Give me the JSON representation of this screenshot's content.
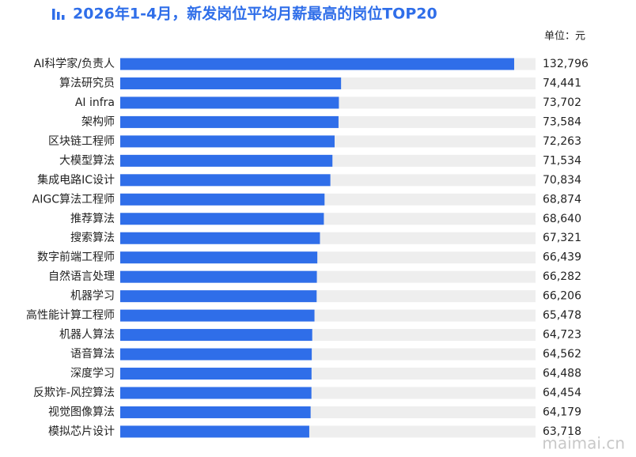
{
  "chart_data": {
    "type": "bar",
    "orientation": "horizontal",
    "title": "2026年1-4月，新发岗位平均月薪最高的岗位TOP20",
    "unit": "单位：元",
    "watermark": "maimai.cn",
    "categories": [
      "AI科学家/负责人",
      "算法研究员",
      "AI infra",
      "架构师",
      "区块链工程师",
      "大模型算法",
      "集成电路IC设计",
      "AIGC算法工程师",
      "推荐算法",
      "搜索算法",
      "数字前端工程师",
      "自然语言处理",
      "机器学习",
      "高性能计算工程师",
      "机器人算法",
      "语音算法",
      "深度学习",
      "反欺诈-风控算法",
      "视觉图像算法",
      "模拟芯片设计"
    ],
    "values": [
      132796,
      74441,
      73702,
      73584,
      72263,
      71534,
      70834,
      68874,
      68640,
      67321,
      66439,
      66282,
      66206,
      65478,
      64723,
      64562,
      64488,
      64454,
      64179,
      63718
    ],
    "value_labels": [
      "132,796",
      "74,441",
      "73,702",
      "73,584",
      "72,263",
      "71,534",
      "70,834",
      "68,874",
      "68,640",
      "67,321",
      "66,439",
      "66,282",
      "66,206",
      "65,478",
      "64,723",
      "64,562",
      "64,488",
      "64,454",
      "64,179",
      "63,718"
    ],
    "color": "#2f6ee9",
    "track_color": "#eeeeee",
    "xlim": [
      0,
      140000
    ]
  }
}
